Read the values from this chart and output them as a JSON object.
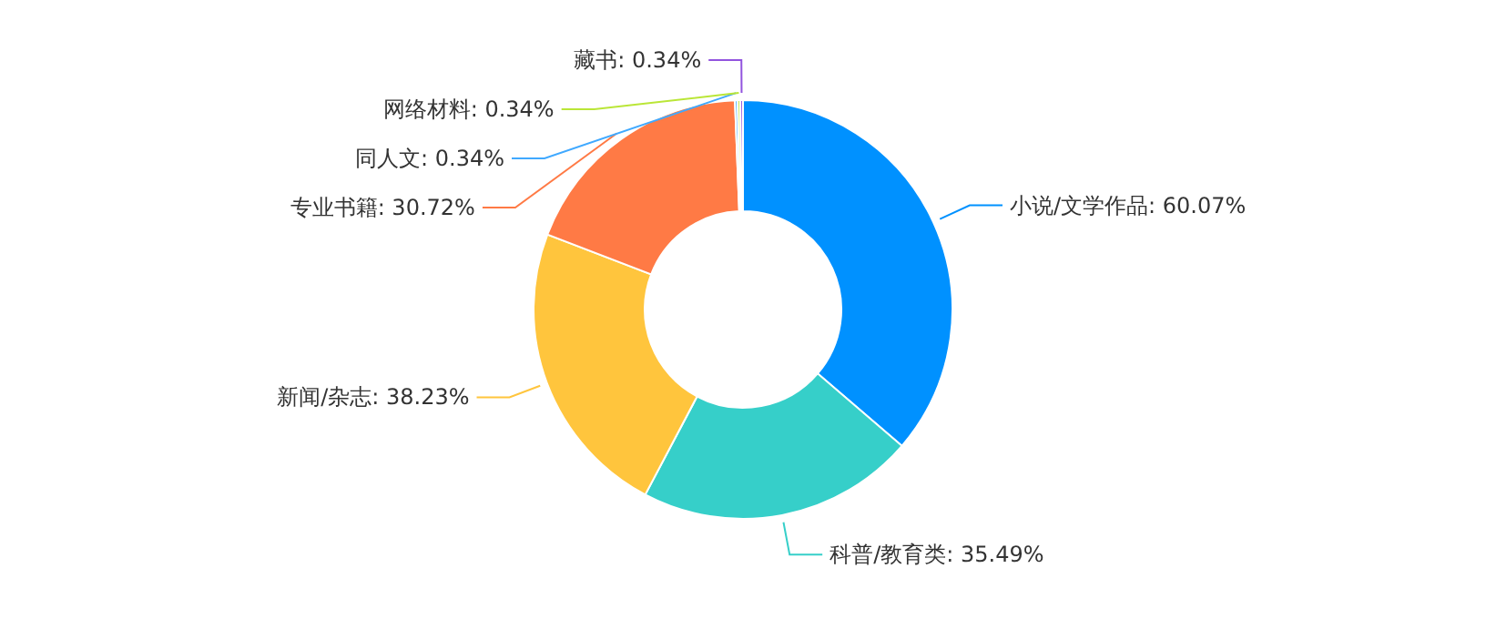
{
  "chart_data": {
    "type": "donut",
    "categories": [
      "小说/文学作品",
      "科普/教育类",
      "新闻/杂志",
      "专业书籍",
      "同人文",
      "网络材料",
      "藏书"
    ],
    "values": [
      60.07,
      35.49,
      38.23,
      30.72,
      0.34,
      0.34,
      0.34
    ],
    "value_labels": [
      "60.07%",
      "35.49%",
      "38.23%",
      "30.72%",
      "0.34%",
      "0.34%",
      "0.34%"
    ],
    "colors": [
      "#0091ff",
      "#36cfc9",
      "#ffc53d",
      "#ff7a45",
      "#40a9ff",
      "#bae637",
      "#9254de"
    ]
  }
}
